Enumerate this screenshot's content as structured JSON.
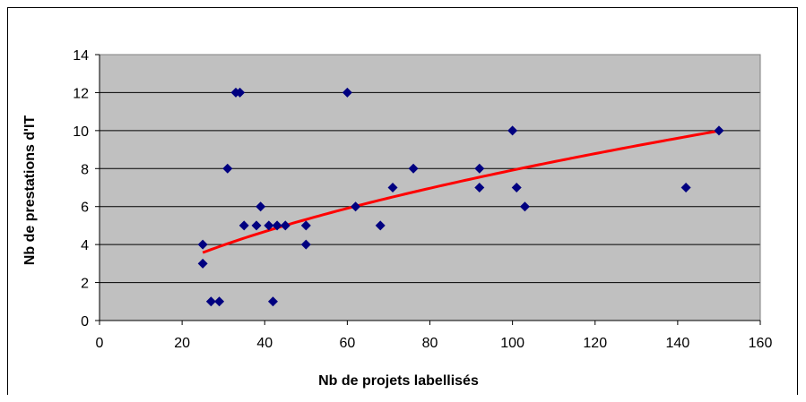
{
  "chart_data": {
    "type": "scatter",
    "xlabel": "Nb de projets labellisés",
    "ylabel": "Nb de prestations d'IT",
    "xlim": [
      0,
      160
    ],
    "ylim": [
      0,
      14
    ],
    "xticks": [
      "0",
      "20",
      "40",
      "60",
      "80",
      "100",
      "120",
      "140",
      "160"
    ],
    "yticks": [
      "0",
      "2",
      "4",
      "6",
      "8",
      "10",
      "12",
      "14"
    ],
    "grid": true,
    "legend": "none",
    "plot_background": "#c0c0c0",
    "marker_color": "#000080",
    "trend_color": "#ff0000",
    "trendline": {
      "type": "power",
      "x_start": 25,
      "x_end": 150,
      "a": 0.565,
      "b": 0.5732
    },
    "points": [
      {
        "x": 25,
        "y": 4
      },
      {
        "x": 25,
        "y": 3
      },
      {
        "x": 27,
        "y": 1
      },
      {
        "x": 29,
        "y": 1
      },
      {
        "x": 31,
        "y": 8
      },
      {
        "x": 33,
        "y": 12
      },
      {
        "x": 34,
        "y": 12
      },
      {
        "x": 35,
        "y": 5
      },
      {
        "x": 38,
        "y": 5
      },
      {
        "x": 39,
        "y": 6
      },
      {
        "x": 41,
        "y": 5
      },
      {
        "x": 42,
        "y": 1
      },
      {
        "x": 43,
        "y": 5
      },
      {
        "x": 45,
        "y": 5
      },
      {
        "x": 50,
        "y": 5
      },
      {
        "x": 50,
        "y": 4
      },
      {
        "x": 60,
        "y": 12
      },
      {
        "x": 62,
        "y": 6
      },
      {
        "x": 68,
        "y": 5
      },
      {
        "x": 71,
        "y": 7
      },
      {
        "x": 76,
        "y": 8
      },
      {
        "x": 92,
        "y": 8
      },
      {
        "x": 92,
        "y": 7
      },
      {
        "x": 100,
        "y": 10
      },
      {
        "x": 101,
        "y": 7
      },
      {
        "x": 103,
        "y": 6
      },
      {
        "x": 142,
        "y": 7
      },
      {
        "x": 150,
        "y": 10
      }
    ]
  }
}
